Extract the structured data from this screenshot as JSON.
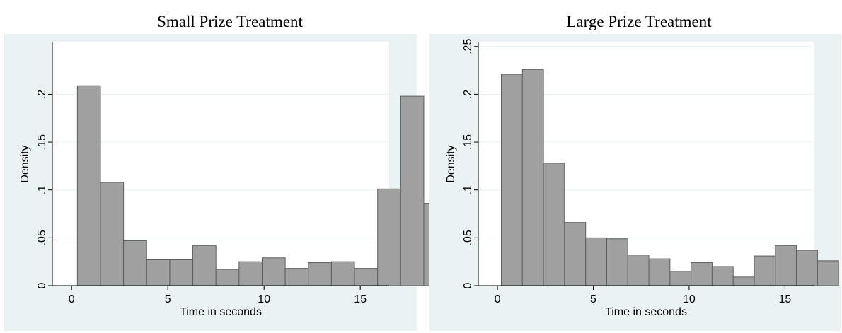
{
  "chart_data": [
    {
      "type": "bar",
      "title": "Small Prize Treatment",
      "xlabel": "Time in seconds",
      "ylabel": "Density",
      "xlim": [
        -1,
        16.5
      ],
      "ylim": [
        0,
        0.255
      ],
      "x_ticks": [
        0,
        5,
        10,
        15
      ],
      "y_ticks": [
        0,
        0.05,
        0.1,
        0.15,
        0.2
      ],
      "y_tick_labels": [
        "0",
        ".05",
        ".1",
        ".15",
        ".2"
      ],
      "grid": true,
      "bar_color": "#a0a0a0",
      "bin_start": 0.3,
      "bin_width": 1.2,
      "values": [
        0.209,
        0.108,
        0.047,
        0.027,
        0.027,
        0.042,
        0.017,
        0.025,
        0.029,
        0.018,
        0.024,
        0.025,
        0.018,
        0.101,
        0.198,
        0.086
      ]
    },
    {
      "type": "bar",
      "title": "Large Prize Treatment",
      "xlabel": "Time in seconds",
      "ylabel": "Density",
      "xlim": [
        -1,
        16.5
      ],
      "ylim": [
        0,
        0.255
      ],
      "x_ticks": [
        0,
        5,
        10,
        15
      ],
      "y_ticks": [
        0,
        0.05,
        0.1,
        0.15,
        0.2,
        0.25
      ],
      "y_tick_labels": [
        "0",
        ".05",
        ".1",
        ".15",
        ".2",
        ".25"
      ],
      "grid": true,
      "bar_color": "#a0a0a0",
      "bin_start": 0.2,
      "bin_width": 1.1,
      "values": [
        0.221,
        0.226,
        0.128,
        0.066,
        0.05,
        0.049,
        0.032,
        0.028,
        0.015,
        0.024,
        0.02,
        0.009,
        0.031,
        0.042,
        0.037,
        0.026
      ]
    }
  ],
  "colors": {
    "panel_bg": "#eaf2f3",
    "plot_bg": "#ffffff",
    "bar_fill": "#a0a0a0",
    "bar_edge": "#5e5e5e",
    "grid": "#eaf2f3"
  }
}
